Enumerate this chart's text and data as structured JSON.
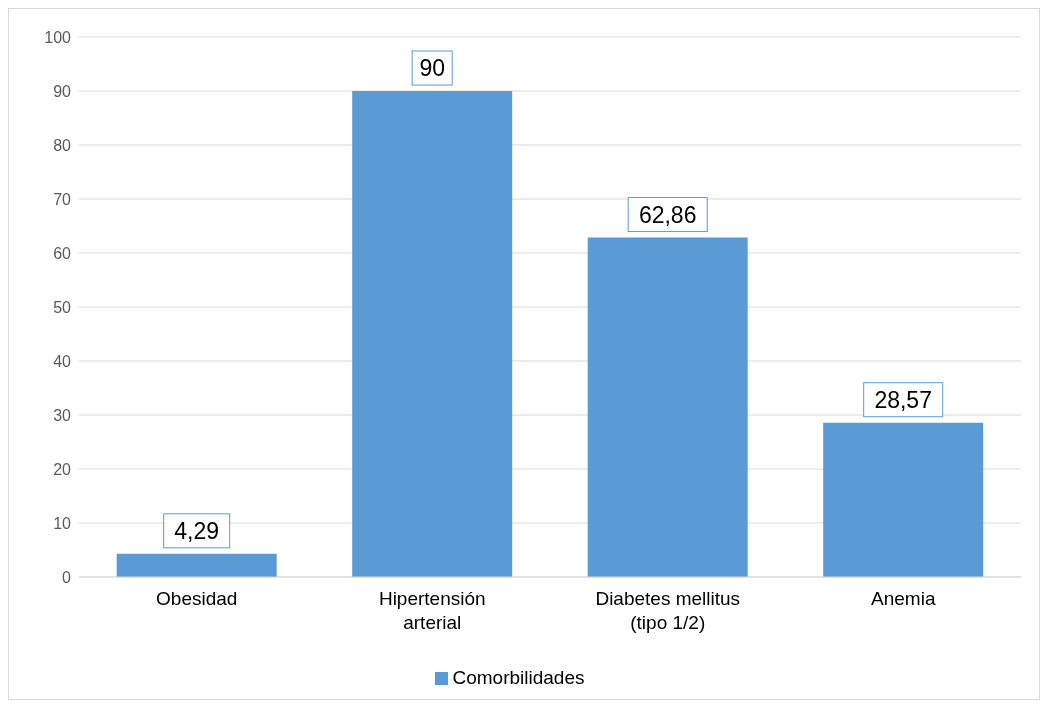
{
  "chart_data": {
    "type": "bar",
    "categories": [
      "Obesidad",
      "Hipertensión arterial",
      "Diabetes mellitus (tipo 1/2)",
      "Anemia"
    ],
    "series": [
      {
        "name": "Comorbilidades",
        "color": "#5b9bd5",
        "values": [
          4.29,
          90,
          62.86,
          28.57
        ],
        "value_labels": [
          "4,29",
          "90",
          "62,86",
          "28,57"
        ]
      }
    ],
    "ylim": [
      0,
      100
    ],
    "yticks": [
      0,
      10,
      20,
      30,
      40,
      50,
      60,
      70,
      80,
      90,
      100
    ],
    "grid": "y",
    "legend": "bottom"
  }
}
